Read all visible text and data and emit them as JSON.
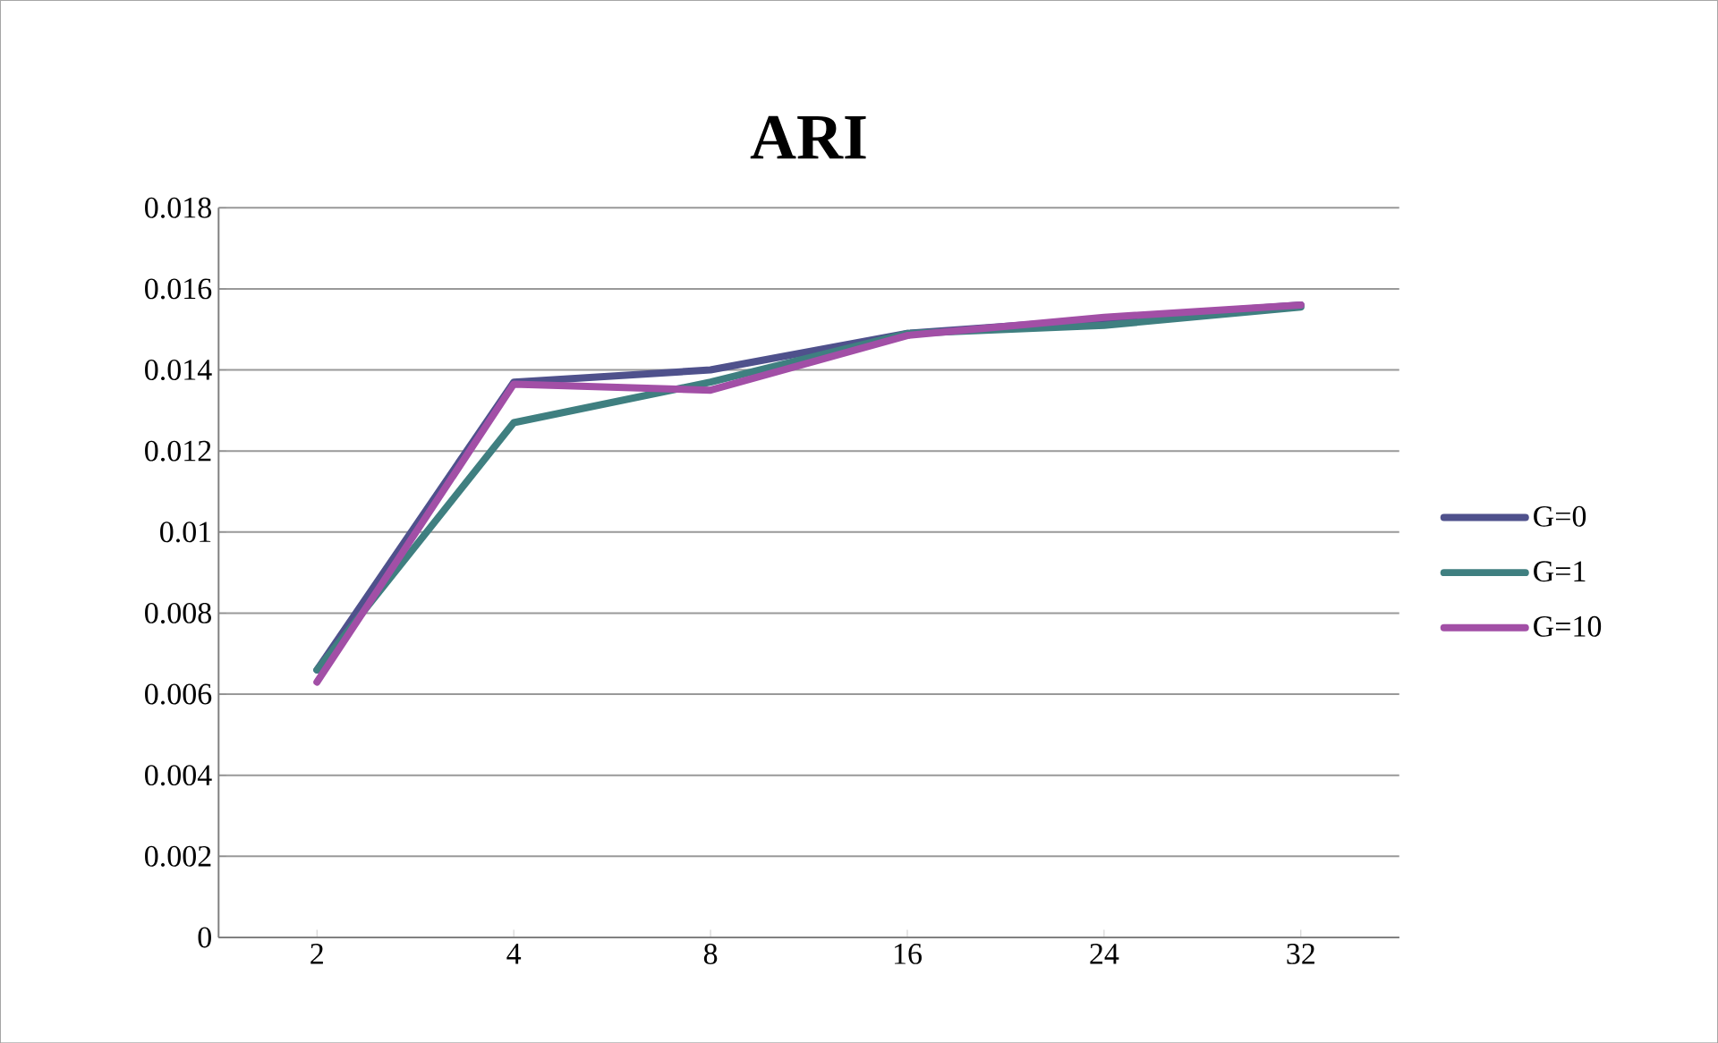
{
  "chart_data": {
    "type": "line",
    "title": "ARI",
    "categories": [
      "2",
      "4",
      "8",
      "16",
      "24",
      "32"
    ],
    "series": [
      {
        "name": "G=0",
        "color": "#4f518c",
        "values": [
          0.0066,
          0.0137,
          0.014,
          0.0149,
          0.01525,
          0.0156
        ]
      },
      {
        "name": "G=1",
        "color": "#3f7f80",
        "values": [
          0.0066,
          0.0127,
          0.0137,
          0.0149,
          0.0151,
          0.01555
        ]
      },
      {
        "name": "G=10",
        "color": "#a24fa6",
        "values": [
          0.0063,
          0.01365,
          0.0135,
          0.01485,
          0.0153,
          0.0156
        ]
      }
    ],
    "ylim": [
      0,
      0.018
    ],
    "yticks": [
      0,
      0.002,
      0.004,
      0.006,
      0.008,
      0.01,
      0.012,
      0.014,
      0.016,
      0.018
    ],
    "grid": "y",
    "legend": "right",
    "marker": "none",
    "line_style": "solid"
  }
}
